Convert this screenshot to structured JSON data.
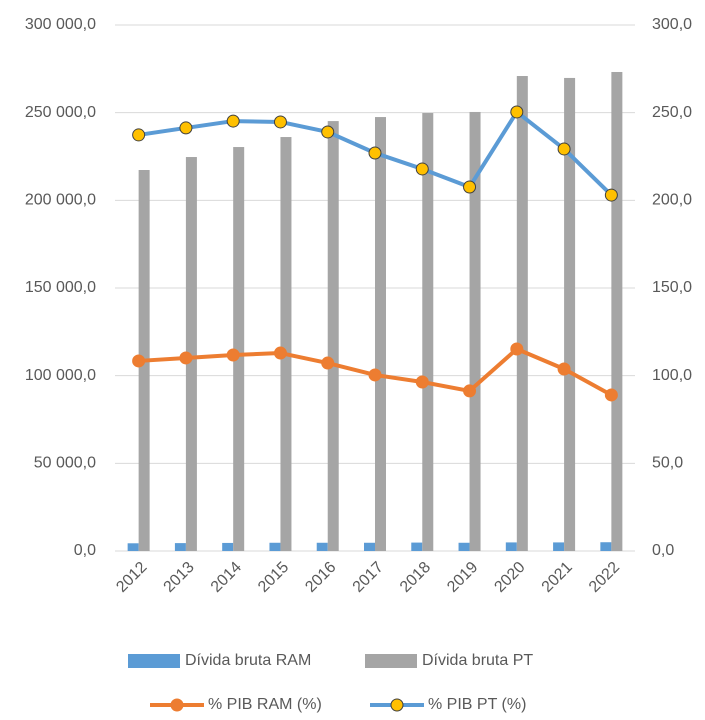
{
  "chart_data": {
    "type": "bar_line",
    "categories": [
      "2012",
      "2013",
      "2014",
      "2015",
      "2016",
      "2017",
      "2018",
      "2019",
      "2020",
      "2021",
      "2022"
    ],
    "series": [
      {
        "name": "Dívida bruta RAM",
        "type": "bar",
        "color": "#5B9BD5",
        "values": [
          4400,
          4500,
          4600,
          4700,
          4700,
          4700,
          4800,
          4700,
          4900,
          4900,
          5000
        ]
      },
      {
        "name": "Dívida bruta PT",
        "type": "bar",
        "color": "#A5A5A5",
        "values": [
          217300,
          224700,
          230400,
          236100,
          245200,
          247500,
          249800,
          250400,
          270900,
          269800,
          273200
        ]
      },
      {
        "name": "% PIB RAM (%)",
        "type": "line",
        "axis": "y2",
        "color": "#ED7D31",
        "marker_color": "#ED7D31",
        "values": [
          108.4,
          110.1,
          111.8,
          112.9,
          107.2,
          100.4,
          96.4,
          91.3,
          115.2,
          103.8,
          89.0
        ]
      },
      {
        "name": "% PIB PT (%)",
        "type": "line",
        "axis": "y2",
        "color": "#5B9BD5",
        "marker_color": "#FFC000",
        "values": [
          237.3,
          241.3,
          245.2,
          244.7,
          239.0,
          227.0,
          217.9,
          207.6,
          250.4,
          229.3,
          203.0
        ]
      }
    ],
    "ylim": [
      0,
      300000
    ],
    "yticks": [
      {
        "value": 0,
        "label": "0,0"
      },
      {
        "value": 50000,
        "label": "50 000,0"
      },
      {
        "value": 100000,
        "label": "100 000,0"
      },
      {
        "value": 150000,
        "label": "150 000,0"
      },
      {
        "value": 200000,
        "label": "200 000,0"
      },
      {
        "value": 250000,
        "label": "250 000,0"
      },
      {
        "value": 300000,
        "label": "300 000,0"
      }
    ],
    "y2lim": [
      0,
      300
    ],
    "y2ticks": [
      {
        "value": 0,
        "label": "0,0"
      },
      {
        "value": 50,
        "label": "50,0"
      },
      {
        "value": 100,
        "label": "100,0"
      },
      {
        "value": 150,
        "label": "150,0"
      },
      {
        "value": 200,
        "label": "200,0"
      },
      {
        "value": 250,
        "label": "250,0"
      },
      {
        "value": 300,
        "label": "300,0"
      }
    ],
    "grid": true,
    "legend": "bottom"
  }
}
